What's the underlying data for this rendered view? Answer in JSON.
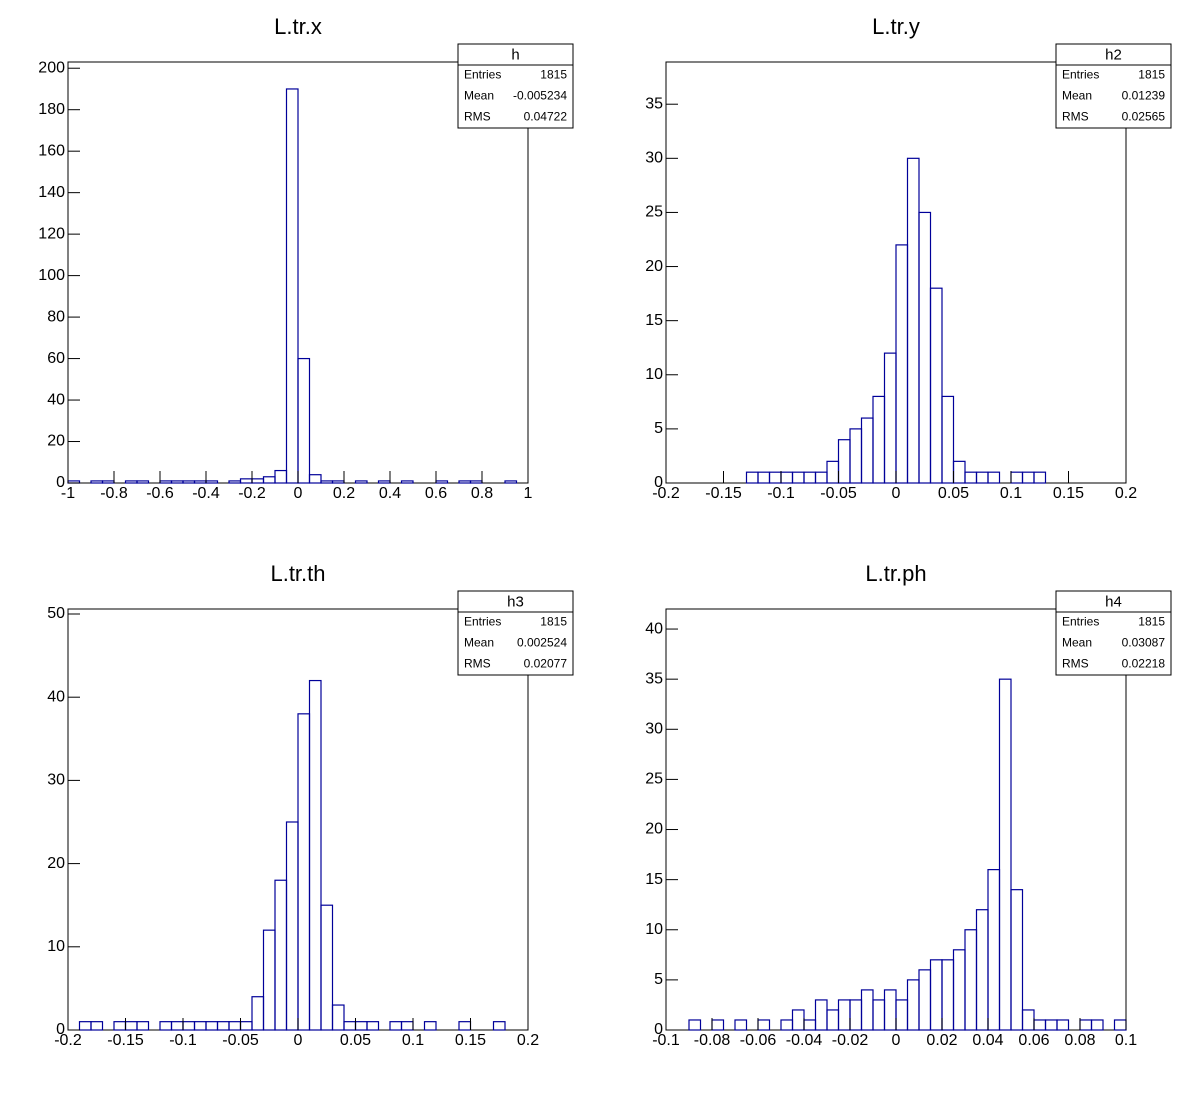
{
  "chart_data": [
    {
      "type": "histogram",
      "title": "L.tr.x",
      "color": "#000099",
      "bins": [
        -1,
        -0.95,
        -0.9,
        -0.85,
        -0.8,
        -0.75,
        -0.7,
        -0.65,
        -0.6,
        -0.55,
        -0.5,
        -0.45,
        -0.4,
        -0.35,
        -0.3,
        -0.25,
        -0.2,
        -0.15,
        -0.1,
        -0.05,
        0,
        0.05,
        0.1,
        0.15,
        0.2,
        0.25,
        0.3,
        0.35,
        0.4,
        0.45,
        0.5,
        0.55,
        0.6,
        0.65,
        0.7,
        0.75,
        0.8,
        0.85,
        0.9,
        0.95,
        1
      ],
      "values": [
        1,
        0,
        1,
        1,
        0,
        1,
        1,
        0,
        1,
        1,
        1,
        1,
        1,
        0,
        1,
        2,
        2,
        3,
        6,
        190,
        60,
        4,
        1,
        1,
        0,
        1,
        0,
        1,
        0,
        1,
        0,
        0,
        1,
        0,
        1,
        1,
        0,
        0,
        1,
        0
      ],
      "xlim": [
        -1,
        1
      ],
      "xticks": [
        -1,
        -0.8,
        -0.6,
        -0.4,
        -0.2,
        0,
        0.2,
        0.4,
        0.6,
        0.8,
        1
      ],
      "ylim": [
        0,
        203
      ],
      "yticks": [
        0,
        20,
        40,
        60,
        80,
        100,
        120,
        140,
        160,
        180,
        200
      ],
      "stats": {
        "name": "h",
        "rows": [
          {
            "label": "Entries",
            "value": 1815
          },
          {
            "label": "Mean",
            "value": -0.005234
          },
          {
            "label": "RMS",
            "value": 0.04722
          }
        ]
      }
    },
    {
      "type": "histogram",
      "title": "L.tr.y",
      "color": "#000099",
      "bins": [
        -0.2,
        -0.19,
        -0.18,
        -0.17,
        -0.16,
        -0.15,
        -0.14,
        -0.13,
        -0.12,
        -0.11,
        -0.1,
        -0.09,
        -0.08,
        -0.07,
        -0.06,
        -0.05,
        -0.04,
        -0.03,
        -0.02,
        -0.01,
        0,
        0.01,
        0.02,
        0.03,
        0.04,
        0.05,
        0.06,
        0.07,
        0.08,
        0.09,
        0.1,
        0.11,
        0.12,
        0.13,
        0.14,
        0.15,
        0.16,
        0.17,
        0.18,
        0.19,
        0.2
      ],
      "values": [
        0,
        0,
        0,
        0,
        0,
        0,
        0,
        1,
        1,
        1,
        1,
        1,
        1,
        1,
        2,
        4,
        5,
        6,
        8,
        12,
        22,
        30,
        25,
        18,
        8,
        2,
        1,
        1,
        1,
        0,
        1,
        1,
        1,
        0,
        0,
        0,
        0,
        0,
        0,
        0
      ],
      "xlim": [
        -0.2,
        0.2
      ],
      "xticks": [
        -0.2,
        -0.15,
        -0.1,
        -0.05,
        0,
        0.05,
        0.1,
        0.15,
        0.2
      ],
      "ylim": [
        0,
        38.9
      ],
      "yticks": [
        0,
        5,
        10,
        15,
        20,
        25,
        30,
        35
      ],
      "stats": {
        "name": "h2",
        "rows": [
          {
            "label": "Entries",
            "value": 1815
          },
          {
            "label": "Mean",
            "value": 0.01239
          },
          {
            "label": "RMS",
            "value": 0.02565
          }
        ]
      }
    },
    {
      "type": "histogram",
      "title": "L.tr.th",
      "color": "#000099",
      "bins": [
        -0.2,
        -0.19,
        -0.18,
        -0.17,
        -0.16,
        -0.15,
        -0.14,
        -0.13,
        -0.12,
        -0.11,
        -0.1,
        -0.09,
        -0.08,
        -0.07,
        -0.06,
        -0.05,
        -0.04,
        -0.03,
        -0.02,
        -0.01,
        0,
        0.01,
        0.02,
        0.03,
        0.04,
        0.05,
        0.06,
        0.07,
        0.08,
        0.09,
        0.1,
        0.11,
        0.12,
        0.13,
        0.14,
        0.15,
        0.16,
        0.17,
        0.18,
        0.19,
        0.2
      ],
      "values": [
        0,
        1,
        1,
        0,
        1,
        1,
        1,
        0,
        1,
        1,
        1,
        1,
        1,
        1,
        1,
        1,
        4,
        12,
        18,
        25,
        38,
        42,
        15,
        3,
        1,
        1,
        1,
        0,
        1,
        1,
        0,
        1,
        0,
        0,
        1,
        0,
        0,
        1,
        0,
        0
      ],
      "xlim": [
        -0.2,
        0.2
      ],
      "xticks": [
        -0.2,
        -0.15,
        -0.1,
        -0.05,
        0,
        0.05,
        0.1,
        0.15,
        0.2
      ],
      "ylim": [
        0,
        50.6
      ],
      "yticks": [
        0,
        10,
        20,
        30,
        40,
        50
      ],
      "stats": {
        "name": "h3",
        "rows": [
          {
            "label": "Entries",
            "value": 1815
          },
          {
            "label": "Mean",
            "value": 0.002524
          },
          {
            "label": "RMS",
            "value": 0.02077
          }
        ]
      }
    },
    {
      "type": "histogram",
      "title": "L.tr.ph",
      "color": "#000099",
      "bins": [
        -0.1,
        -0.095,
        -0.09,
        -0.085,
        -0.08,
        -0.075,
        -0.07,
        -0.065,
        -0.06,
        -0.055,
        -0.05,
        -0.045,
        -0.04,
        -0.035,
        -0.03,
        -0.025,
        -0.02,
        -0.015,
        -0.01,
        -0.005,
        0,
        0.005,
        0.01,
        0.015,
        0.02,
        0.025,
        0.03,
        0.035,
        0.04,
        0.045,
        0.05,
        0.055,
        0.06,
        0.065,
        0.07,
        0.075,
        0.08,
        0.085,
        0.09,
        0.095,
        0.1
      ],
      "values": [
        0,
        0,
        1,
        0,
        1,
        0,
        1,
        0,
        1,
        0,
        1,
        2,
        1,
        3,
        2,
        3,
        3,
        4,
        3,
        4,
        3,
        5,
        6,
        7,
        7,
        8,
        10,
        12,
        16,
        35,
        14,
        2,
        1,
        1,
        1,
        0,
        1,
        1,
        0,
        1
      ],
      "xlim": [
        -0.1,
        0.1
      ],
      "xticks": [
        -0.1,
        -0.08,
        -0.06,
        -0.04,
        -0.02,
        0,
        0.02,
        0.04,
        0.06,
        0.08,
        0.1
      ],
      "ylim": [
        0,
        42
      ],
      "yticks": [
        0,
        5,
        10,
        15,
        20,
        25,
        30,
        35,
        40
      ],
      "stats": {
        "name": "h4",
        "rows": [
          {
            "label": "Entries",
            "value": 1815
          },
          {
            "label": "Mean",
            "value": 0.03087
          },
          {
            "label": "RMS",
            "value": 0.02218
          }
        ]
      }
    }
  ]
}
